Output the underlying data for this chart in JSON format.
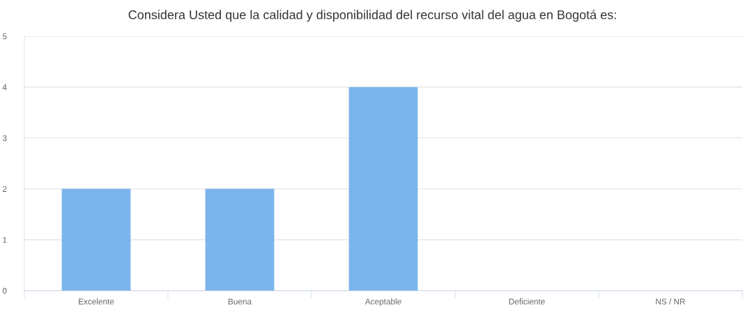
{
  "chart_data": {
    "type": "bar",
    "title": "Considera Usted que la calidad y disponibilidad del recurso vital del agua en Bogotá es:",
    "categories": [
      "Excelente",
      "Buena",
      "Aceptable",
      "Deficiente",
      "NS / NR"
    ],
    "values": [
      2,
      2,
      4,
      0,
      0
    ],
    "color": "#7cb5ec",
    "ylim": [
      0,
      5
    ],
    "yticks": [
      0,
      1,
      2,
      3,
      4,
      5
    ],
    "grid": "y",
    "legend": false
  }
}
